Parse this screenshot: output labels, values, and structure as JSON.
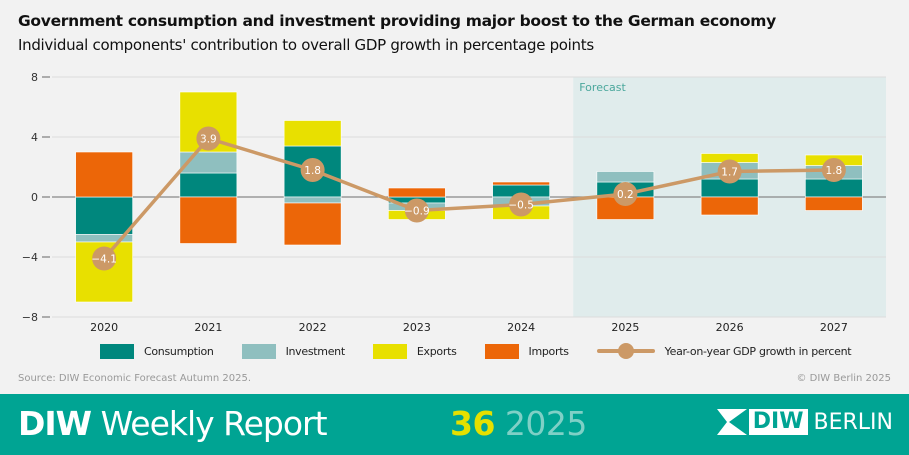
{
  "title": "Government consumption and investment providing major boost to the German economy",
  "subtitle": "Individual components' contribution to overall GDP growth in percentage points",
  "chart_data": {
    "type": "bar",
    "stacked": true,
    "categories": [
      "2020",
      "2021",
      "2022",
      "2023",
      "2024",
      "2025",
      "2026",
      "2027"
    ],
    "ylim": [
      -8,
      8
    ],
    "yticks": [
      -8,
      -4,
      0,
      4,
      8
    ],
    "ytick_labels": [
      "−8",
      "−4",
      "0",
      "4",
      "8"
    ],
    "grid": true,
    "forecast_label": "Forecast",
    "forecast_from": "2025",
    "series": [
      {
        "name": "Consumption",
        "color": "#00877d",
        "values": [
          -2.5,
          1.6,
          3.4,
          -0.4,
          0.8,
          1.0,
          1.2,
          1.2
        ]
      },
      {
        "name": "Investment",
        "color": "#8fbfbf",
        "values": [
          -0.5,
          1.4,
          -0.4,
          -0.5,
          -0.6,
          0.7,
          1.1,
          0.9
        ]
      },
      {
        "name": "Exports",
        "color": "#e8e000",
        "values": [
          -4.0,
          4.0,
          1.7,
          -0.6,
          -0.9,
          0.0,
          0.6,
          0.7
        ]
      },
      {
        "name": "Imports",
        "color": "#ec6608",
        "values": [
          3.0,
          -3.1,
          -2.8,
          0.6,
          0.2,
          -1.5,
          -1.2,
          -0.9
        ]
      }
    ],
    "line": {
      "name": "Year-on-year GDP growth in percent",
      "color": "#cc9966",
      "values": [
        -4.1,
        3.9,
        1.8,
        -0.9,
        -0.5,
        0.2,
        1.7,
        1.8
      ],
      "labels": [
        "−4.1",
        "3.9",
        "1.8",
        "−0.9",
        "−0.5",
        "0.2",
        "1.7",
        "1.8"
      ]
    },
    "legend_position": "bottom"
  },
  "source": "Source: DIW Economic Forecast Autumn 2025.",
  "copyright": "© DIW Berlin 2025",
  "footer": {
    "brand_bold": "DIW",
    "brand_rest": " Weekly Report",
    "issue_number": "36",
    "issue_year": " 2025",
    "logo_box": "DIW",
    "logo_text": "BERLIN"
  }
}
